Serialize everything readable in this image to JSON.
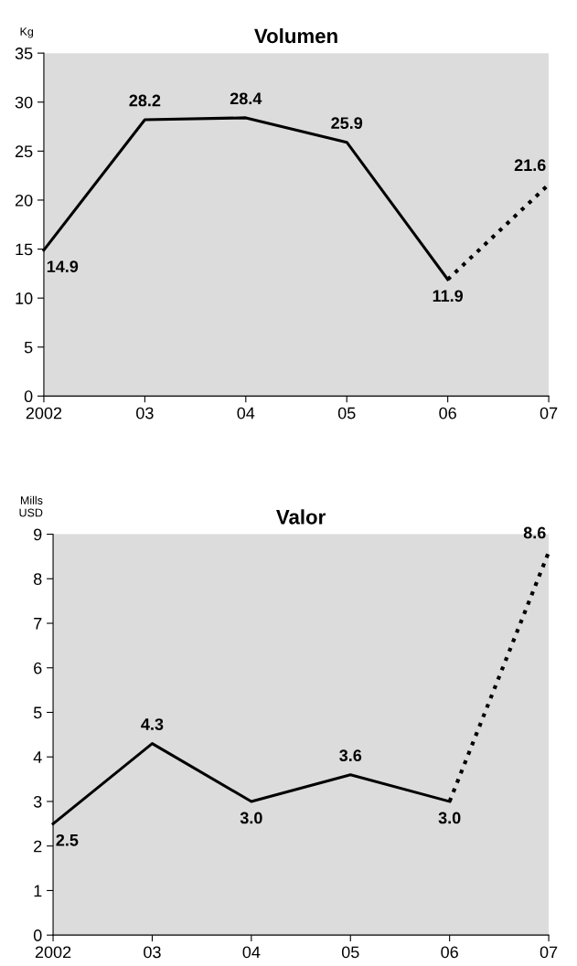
{
  "chart_data": [
    {
      "type": "line",
      "title": "Volumen",
      "ylabel": "Kg",
      "categories": [
        "2002",
        "03",
        "04",
        "05",
        "06",
        "07"
      ],
      "ylim": [
        0,
        35
      ],
      "yticks": [
        0,
        5,
        10,
        15,
        20,
        25,
        30,
        35
      ],
      "grid": false,
      "legend": false,
      "marker": "none",
      "series": [
        {
          "color": "#000000",
          "line_style": "solid",
          "values": [
            14.9,
            28.2,
            28.4,
            25.9,
            11.9,
            null
          ],
          "value_labels": [
            "14.9",
            "28.2",
            "28.4",
            "25.9",
            "11.9",
            null
          ]
        },
        {
          "color": "#000000",
          "line_style": "dotted",
          "values": [
            null,
            null,
            null,
            null,
            11.9,
            21.6
          ],
          "value_labels": [
            null,
            null,
            null,
            null,
            null,
            "21.6"
          ]
        }
      ]
    },
    {
      "type": "line",
      "title": "Valor",
      "ylabel": "Mills\nUSD",
      "categories": [
        "2002",
        "03",
        "04",
        "05",
        "06",
        "07"
      ],
      "ylim": [
        0,
        9
      ],
      "yticks": [
        0,
        1,
        2,
        3,
        4,
        5,
        6,
        7,
        8,
        9
      ],
      "grid": false,
      "legend": false,
      "marker": "none",
      "series": [
        {
          "color": "#000000",
          "line_style": "solid",
          "values": [
            2.5,
            4.3,
            3.0,
            3.6,
            3.0,
            null
          ],
          "value_labels": [
            "2.5",
            "4.3",
            "3.0",
            "3.6",
            "3.0",
            null
          ]
        },
        {
          "color": "#000000",
          "line_style": "dotted",
          "values": [
            null,
            null,
            null,
            null,
            3.0,
            8.6
          ],
          "value_labels": [
            null,
            null,
            null,
            null,
            null,
            "8.6"
          ]
        }
      ]
    }
  ]
}
